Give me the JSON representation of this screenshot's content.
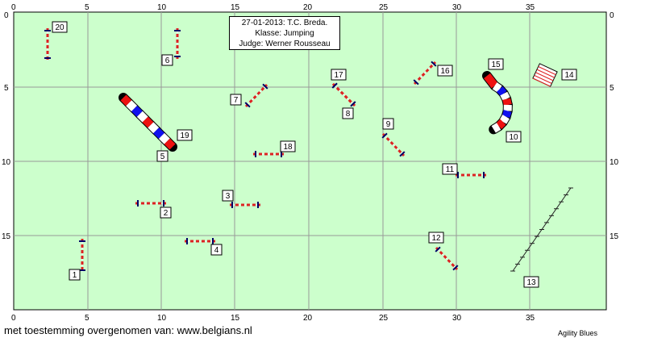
{
  "info": {
    "date_club": "27-01-2013: T.C. Breda.",
    "class": "Klasse: Jumping",
    "judge": "Judge: Werner Rousseau"
  },
  "axis": {
    "x_ticks": [
      "0",
      "5",
      "10",
      "15",
      "20",
      "25",
      "30",
      "35"
    ],
    "y_ticks": [
      "0",
      "5",
      "10",
      "15"
    ]
  },
  "obstacles": [
    {
      "num": "1",
      "type": "jump"
    },
    {
      "num": "2",
      "type": "jump"
    },
    {
      "num": "3",
      "type": "jump"
    },
    {
      "num": "4",
      "type": "jump"
    },
    {
      "num": "5",
      "type": "tunnel"
    },
    {
      "num": "6",
      "type": "jump"
    },
    {
      "num": "7",
      "type": "jump"
    },
    {
      "num": "8",
      "type": "jump"
    },
    {
      "num": "9",
      "type": "jump"
    },
    {
      "num": "10",
      "type": "tunnel"
    },
    {
      "num": "11",
      "type": "jump"
    },
    {
      "num": "12",
      "type": "jump"
    },
    {
      "num": "13",
      "type": "weave-poles"
    },
    {
      "num": "14",
      "type": "tire"
    },
    {
      "num": "15",
      "type": "tunnel"
    },
    {
      "num": "16",
      "type": "jump"
    },
    {
      "num": "17",
      "type": "jump"
    },
    {
      "num": "18",
      "type": "jump"
    },
    {
      "num": "19",
      "type": "tunnel"
    },
    {
      "num": "20",
      "type": "jump"
    }
  ],
  "footer": {
    "credit": "met toestemming overgenomen van: www.belgians.nl",
    "brand": "Agility Blues"
  },
  "colors": {
    "field": "#ccffcc",
    "grid": "#999999",
    "bar_red": "#dd2222",
    "stand": "#000066",
    "tunnel_red": "#ee1111",
    "tunnel_blue": "#1111ee"
  }
}
